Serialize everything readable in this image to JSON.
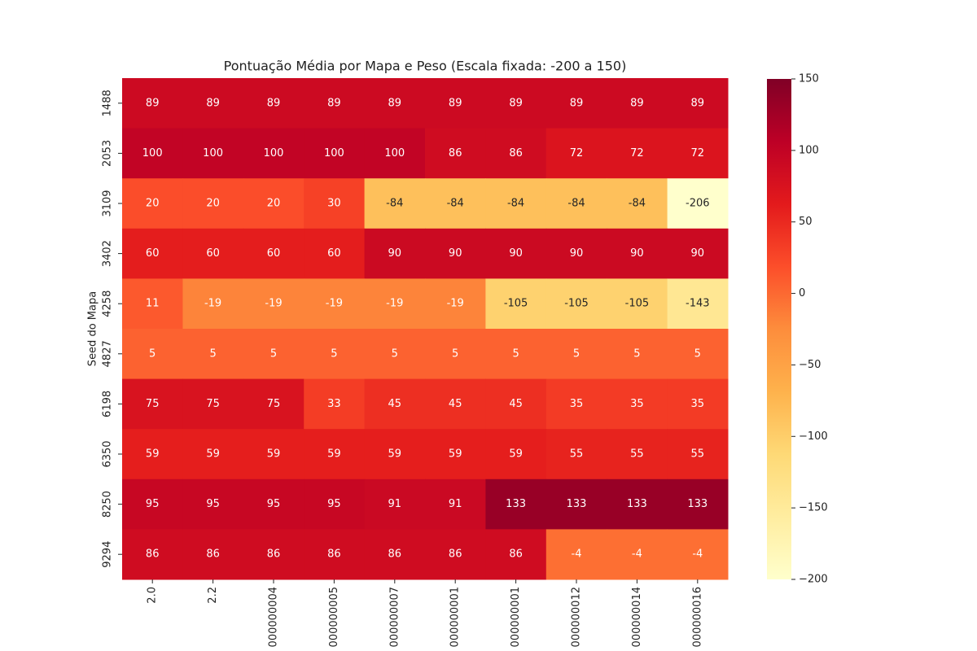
{
  "chart_data": {
    "type": "heatmap",
    "title": "Pontuação Média por Mapa e Peso (Escala fixada: -200 a 150)",
    "ylabel": "Seed do Mapa",
    "x_categories": [
      "2.0",
      "2.2",
      "000000004",
      "000000005",
      "000000007",
      "000000001",
      "000000001",
      "000000012",
      "000000014",
      "000000016"
    ],
    "y_categories": [
      "1488",
      "2053",
      "3109",
      "3402",
      "4258",
      "4827",
      "6198",
      "6350",
      "8250",
      "9294"
    ],
    "values": [
      [
        89,
        89,
        89,
        89,
        89,
        89,
        89,
        89,
        89,
        89
      ],
      [
        100,
        100,
        100,
        100,
        100,
        86,
        86,
        72,
        72,
        72
      ],
      [
        20,
        20,
        20,
        30,
        -84,
        -84,
        -84,
        -84,
        -84,
        -206
      ],
      [
        60,
        60,
        60,
        60,
        90,
        90,
        90,
        90,
        90,
        90
      ],
      [
        11,
        -19,
        -19,
        -19,
        -19,
        -19,
        -105,
        -105,
        -105,
        -143
      ],
      [
        5,
        5,
        5,
        5,
        5,
        5,
        5,
        5,
        5,
        5
      ],
      [
        75,
        75,
        75,
        33,
        45,
        45,
        45,
        35,
        35,
        35
      ],
      [
        59,
        59,
        59,
        59,
        59,
        59,
        59,
        55,
        55,
        55
      ],
      [
        95,
        95,
        95,
        95,
        91,
        91,
        133,
        133,
        133,
        133
      ],
      [
        86,
        86,
        86,
        86,
        86,
        86,
        86,
        -4,
        -4,
        -4
      ]
    ],
    "clim": [
      -200,
      150
    ],
    "colorbar_ticks": [
      {
        "value": -200,
        "label": "−200"
      },
      {
        "value": -150,
        "label": "−150"
      },
      {
        "value": -100,
        "label": "−100"
      },
      {
        "value": -50,
        "label": "−50"
      },
      0,
      50,
      100,
      150
    ],
    "colors": [
      "#ffffcc",
      "#ffeda0",
      "#fed976",
      "#feb24c",
      "#fd8d3c",
      "#fc4e2a",
      "#e31a1c",
      "#bd0026",
      "#800026"
    ]
  }
}
